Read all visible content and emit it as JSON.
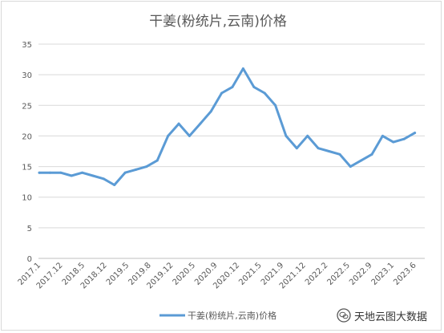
{
  "chart_data": {
    "type": "line",
    "title": "干姜(粉统片,云南)价格",
    "xlabel": "",
    "ylabel": "",
    "ylim": [
      0,
      35
    ],
    "yticks": [
      0,
      5,
      10,
      15,
      20,
      25,
      30,
      35
    ],
    "grid": true,
    "legend_position": "bottom",
    "line_color": "#5b9bd5",
    "x_tick_labels": [
      "2017.1",
      "2017.12",
      "2018.5",
      "2018.12",
      "2019.5",
      "2019.8",
      "2019.12",
      "2020.5",
      "2020.9",
      "2020.12",
      "2021.5",
      "2021.9",
      "2021.12",
      "2022.2",
      "2022.5",
      "2022.9",
      "2023.1",
      "2023.6"
    ],
    "series": [
      {
        "name": "干姜(粉统片,云南)价格",
        "values": [
          14,
          14,
          14,
          13.5,
          14,
          13.5,
          13,
          12,
          14,
          14.5,
          15,
          16,
          20,
          22,
          20,
          22,
          24,
          27,
          28,
          31,
          28,
          27,
          25,
          20,
          18,
          20,
          18,
          17.5,
          17,
          15,
          16,
          17,
          20,
          19,
          19.5,
          20.5
        ]
      }
    ]
  },
  "watermark": {
    "text": "天地云图大数据"
  }
}
